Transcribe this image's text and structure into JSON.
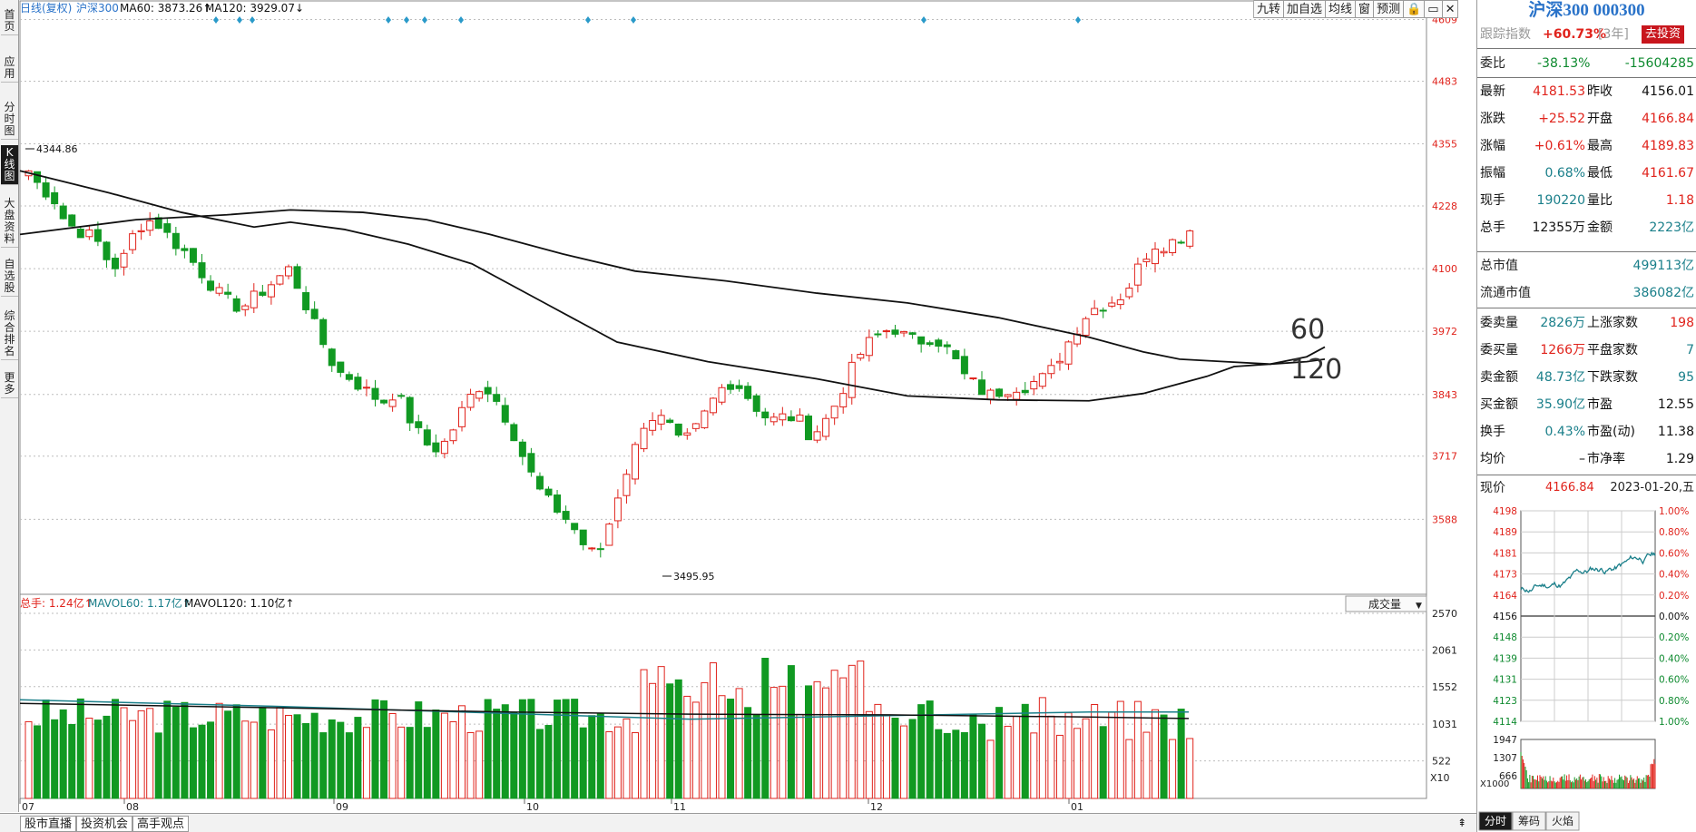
{
  "leftbar": [
    {
      "label": "首页",
      "active": false
    },
    {
      "label": "应用",
      "active": false
    },
    {
      "label": "分时图",
      "active": false
    },
    {
      "label": "K线图",
      "active": true
    },
    {
      "label": "大盘资料",
      "active": false
    },
    {
      "label": "自选股",
      "active": false
    },
    {
      "label": "综合排名",
      "active": false
    },
    {
      "label": "更多",
      "active": false
    }
  ],
  "header": {
    "period": "日线(复权)",
    "index_name": "沪深300",
    "ma60": "MA60: 3873.26",
    "ma120": "MA120: 3929.07"
  },
  "top_buttons": [
    "九转",
    "加自选",
    "均线",
    "窗",
    "预测",
    "🔒",
    "▭",
    "✕"
  ],
  "price_axis": [
    "4609",
    "4483",
    "4355",
    "4228",
    "4100",
    "3972",
    "3843",
    "3717",
    "3588"
  ],
  "annotations": {
    "high": "4344.86",
    "low": "3495.95",
    "ma_label_60": "60",
    "ma_label_120": "120"
  },
  "volume": {
    "header_total": "总手: 1.24亿",
    "header_mavol60": "MAVOL60: 1.17亿",
    "header_mavol120": "MAVOL120: 1.10亿",
    "selector": "成交量",
    "axis": [
      "2570",
      "2061",
      "1552",
      "1031",
      "522"
    ],
    "unit": "X10"
  },
  "x_axis": [
    "07",
    "08",
    "09",
    "10",
    "11",
    "12",
    "01"
  ],
  "bottom_tabs": [
    "股市直播",
    "投资机会",
    "高手观点"
  ],
  "quote": {
    "title": "沪深300 000300",
    "track_label": "跟踪指数",
    "track_value": "+60.73%",
    "track_period": "[3年]",
    "invest_btn": "去投资",
    "weibi_label": "委比",
    "weibi_pct": "-38.13%",
    "weibi_val": "-15604285",
    "latest_label": "最新",
    "latest": "4181.53",
    "prev_label": "昨收",
    "prev": "4156.01",
    "chg_label": "涨跌",
    "chg": "+25.52",
    "open_label": "开盘",
    "open": "4166.84",
    "pct_label": "涨幅",
    "pct": "+0.61%",
    "high_label": "最高",
    "high": "4189.83",
    "amp_label": "振幅",
    "amp": "0.68%",
    "low_label": "最低",
    "low": "4161.67",
    "curhand_label": "现手",
    "curhand": "190220",
    "volratio_label": "量比",
    "volratio": "1.18",
    "totalhand_label": "总手",
    "totalhand": "12355万",
    "amount_label": "金额",
    "amount": "2223亿",
    "mktcap_label": "总市值",
    "mktcap": "499113亿",
    "float_label": "流通市值",
    "float_val": "386082亿",
    "sellvol_label": "委卖量",
    "sellvol": "2826万",
    "upcount_label": "上涨家数",
    "upcount": "198",
    "buyvol_label": "委买量",
    "buyvol": "1266万",
    "flat_label": "平盘家数",
    "flat": "7",
    "sellamt_label": "卖金额",
    "sellamt": "48.73亿",
    "downcount_label": "下跌家数",
    "downcount": "95",
    "buyamt_label": "买金额",
    "buyamt": "35.90亿",
    "pe_label": "市盈",
    "pe": "12.55",
    "turnover_label": "换手",
    "turnover": "0.43%",
    "pedyn_label": "市盈(动)",
    "pedyn": "11.38",
    "avg_label": "均价",
    "avg": "–",
    "pb_label": "市净率",
    "pb": "1.29",
    "now_label": "现价",
    "now": "4166.84",
    "date": "2023-01-20,五"
  },
  "mini_chart": {
    "left_axis": [
      "4198",
      "4189",
      "4181",
      "4173",
      "4164",
      "4156",
      "4148",
      "4139",
      "4131",
      "4123",
      "4114"
    ],
    "right_axis": [
      "1.00%",
      "0.80%",
      "0.60%",
      "0.40%",
      "0.20%",
      "0.00%",
      "0.20%",
      "0.40%",
      "0.60%",
      "0.80%",
      "1.00%"
    ],
    "vol_axis": [
      "1947",
      "1307",
      "666"
    ],
    "vol_unit": "X1000",
    "tabs": [
      "分时",
      "筹码",
      "火焰"
    ]
  },
  "colors": {
    "up": "#e0231c",
    "down": "#119922",
    "ma": "#111111",
    "mavol60": "#1a7f8a",
    "marker": "#2a9ac9"
  }
}
